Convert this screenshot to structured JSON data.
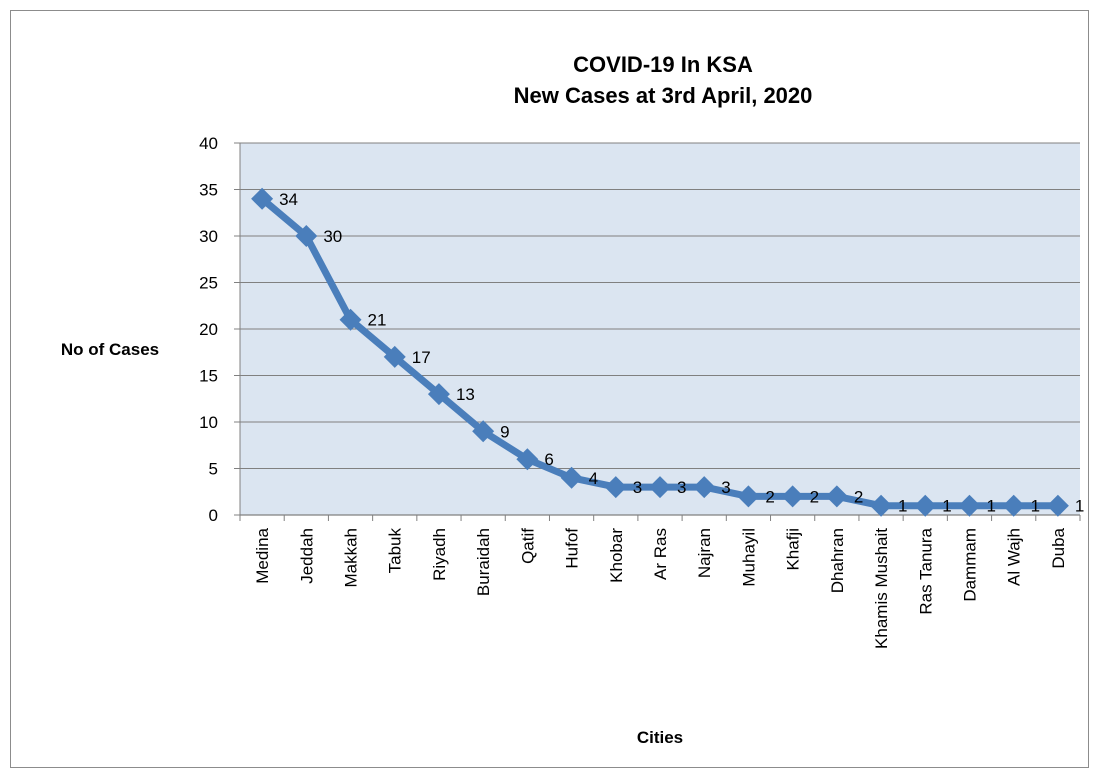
{
  "chart_data": {
    "type": "line",
    "title": "COVID-19 In KSA",
    "subtitle": "New Cases at 3rd April, 2020",
    "xlabel": "Cities",
    "ylabel": "No of Cases",
    "ylim": [
      0,
      40
    ],
    "yticks": [
      "0",
      "5",
      "10",
      "15",
      "20",
      "25",
      "30",
      "35",
      "40"
    ],
    "grid": true,
    "legend": "none",
    "categories": [
      "Medina",
      "Jeddah",
      "Makkah",
      "Tabuk",
      "Riyadh",
      "Buraidah",
      "Qatif",
      "Hufof",
      "Khobar",
      "Ar Ras",
      "Najran",
      "Muhayil",
      "Khafji",
      "Dhahran",
      "Khamis Mushait",
      "Ras Tanura",
      "Dammam",
      "Al Wajh",
      "Duba"
    ],
    "values": [
      34,
      30,
      21,
      17,
      13,
      9,
      6,
      4,
      3,
      3,
      3,
      2,
      2,
      2,
      1,
      1,
      1,
      1,
      1
    ],
    "data_labels": [
      "34",
      "30",
      "21",
      "17",
      "13",
      "9",
      "6",
      "4",
      "3",
      "3",
      "3",
      "2",
      "2",
      "2",
      "1",
      "1",
      "1",
      "1",
      "1"
    ],
    "colors": {
      "line": "#4a7ebb",
      "plot_bg": "#dbe5f1",
      "grid": "#808080"
    }
  }
}
